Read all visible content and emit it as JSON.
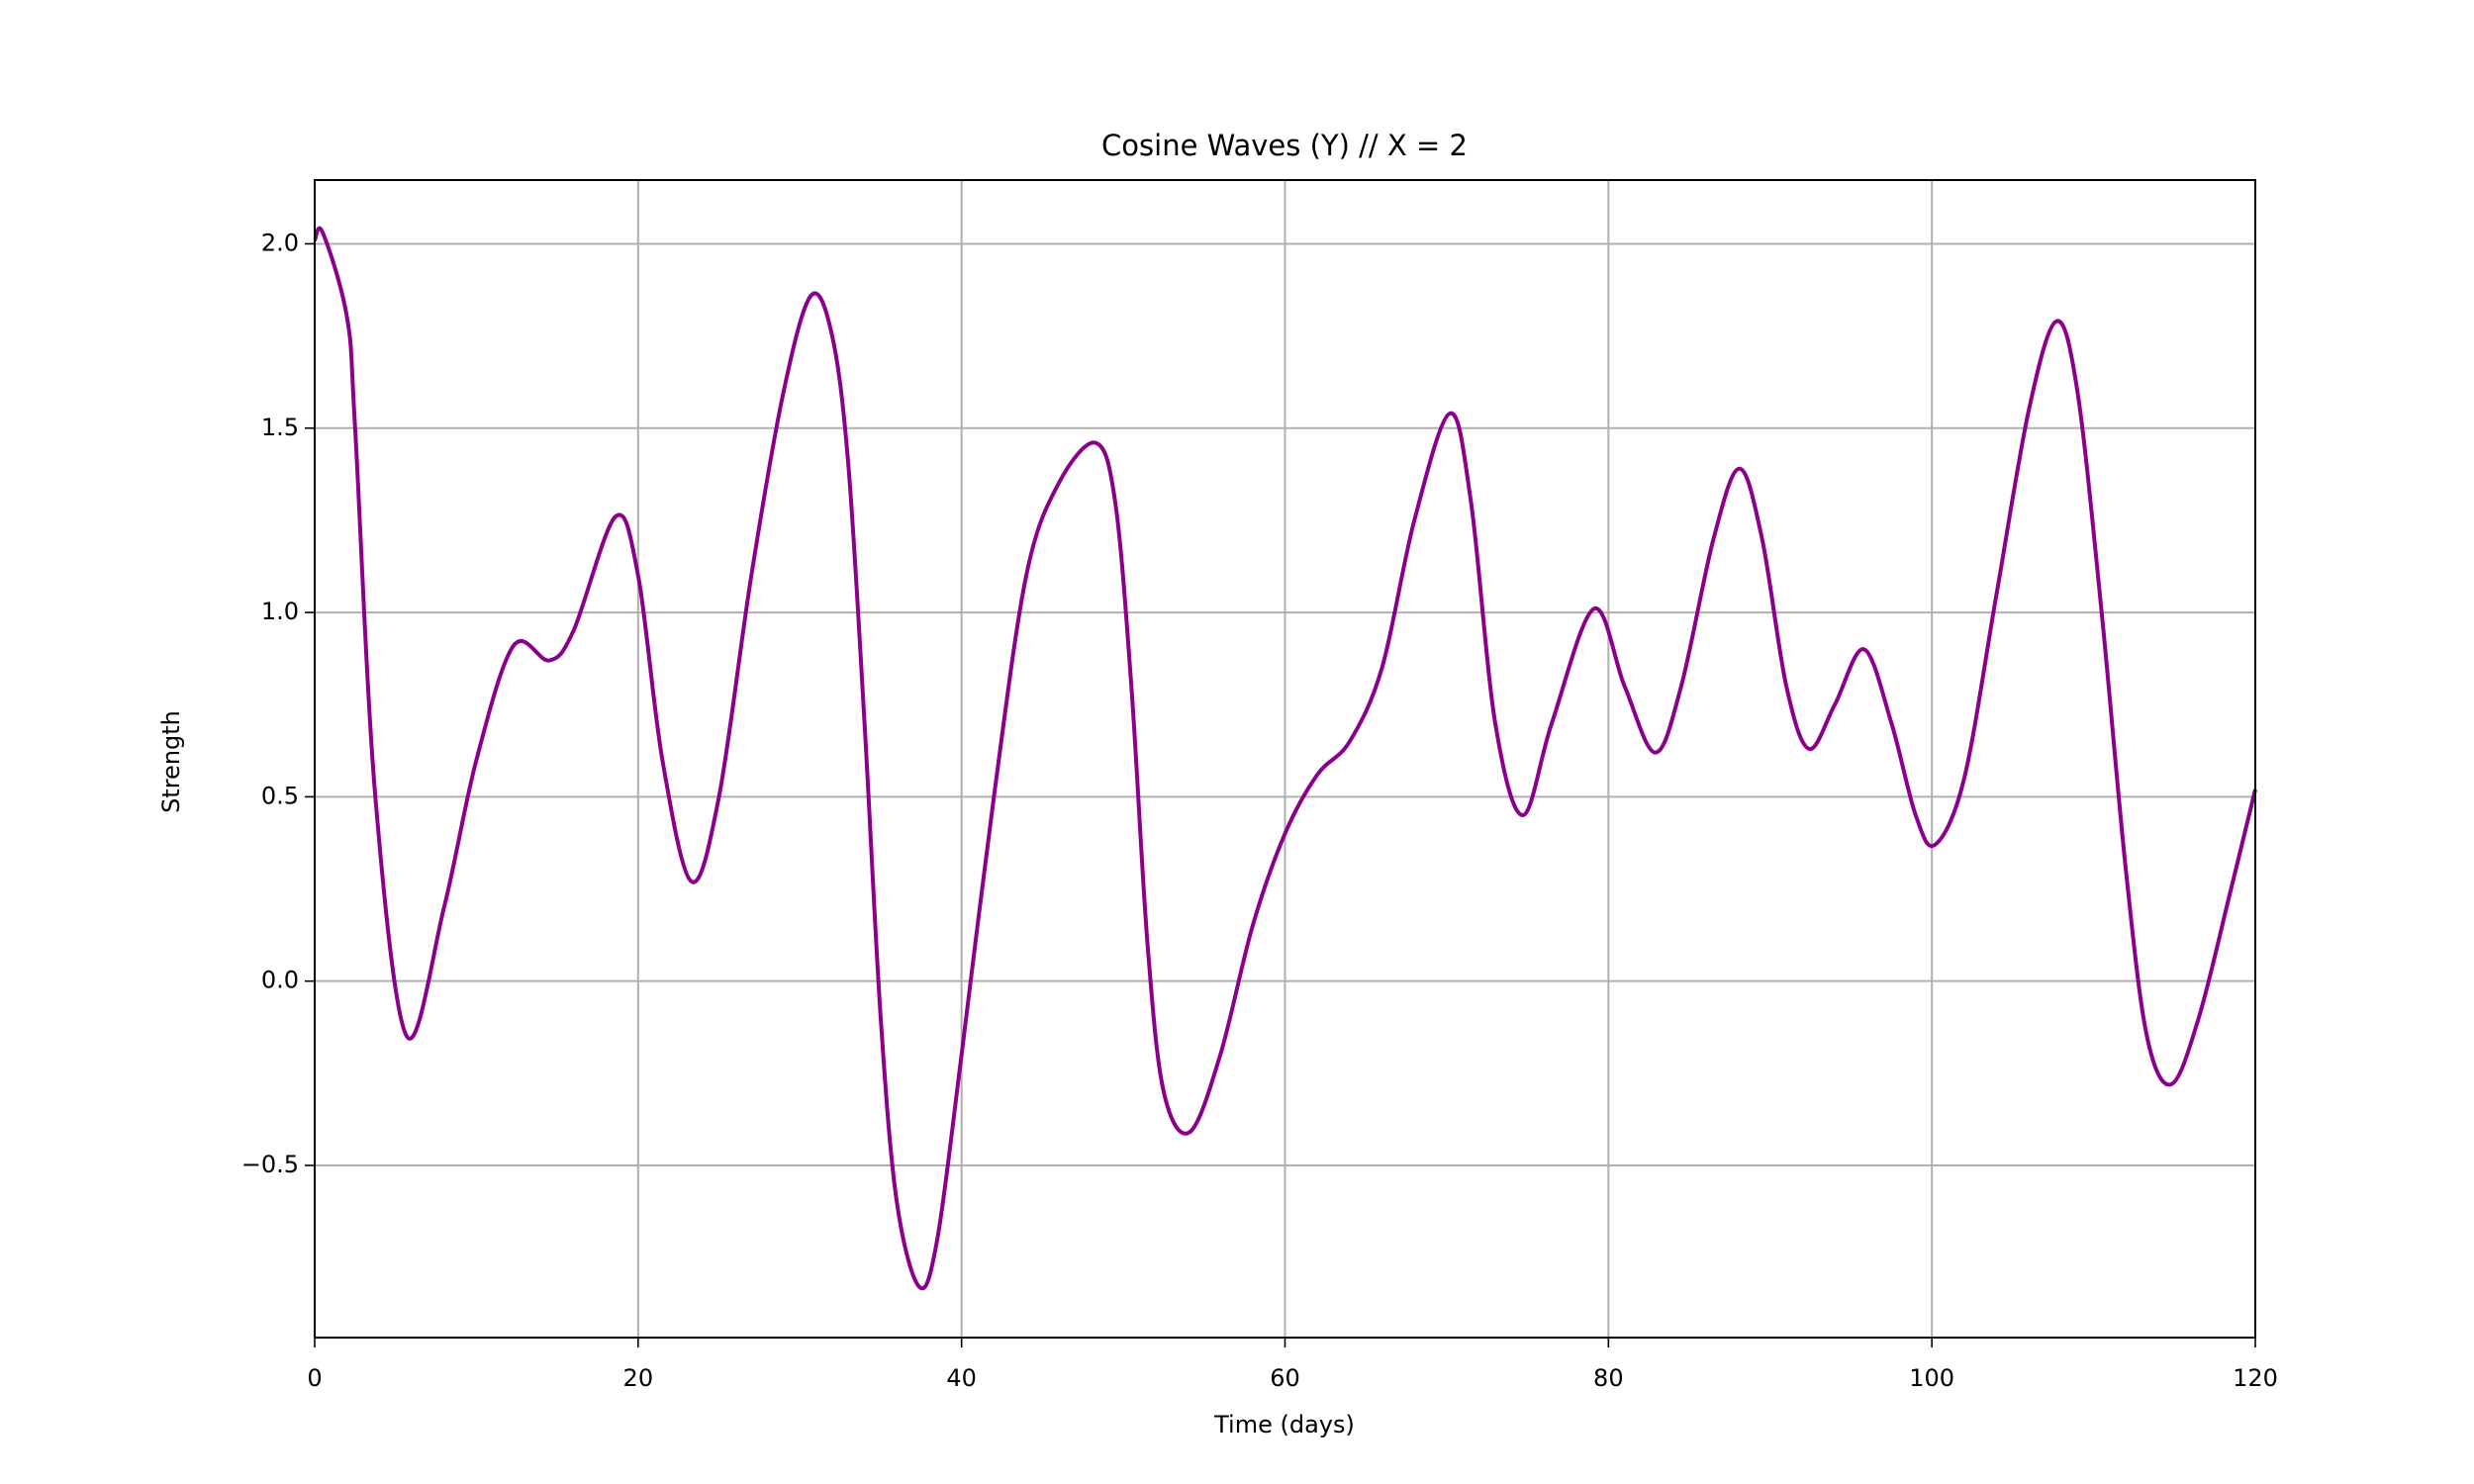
{
  "chart_data": {
    "type": "line",
    "title": "Cosine Waves (Y) // X = 2",
    "x_label": "Time (days)",
    "y_label": "Strength",
    "x": [
      0,
      0.5,
      2,
      2.5,
      3.75,
      5.7,
      8,
      10,
      12.3,
      14.5,
      16,
      18.6,
      20,
      21.5,
      23.3,
      25,
      27,
      29,
      30.7,
      32,
      33,
      34,
      35,
      36,
      37.4,
      38.5,
      40,
      42,
      44,
      46,
      48.3,
      49.5,
      50.5,
      51.5,
      52.5,
      54.1,
      56,
      58,
      60,
      62,
      64,
      66,
      68,
      70.2,
      71.5,
      73,
      74.7,
      76.5,
      79.1,
      81,
      82.9,
      84.5,
      86.5,
      88.1,
      89.5,
      91,
      92.4,
      94,
      95.8,
      97.5,
      99,
      100.2,
      102,
      104,
      106,
      107.7,
      109,
      110.5,
      112,
      113.3,
      114.8,
      116.5,
      118.5,
      120
    ],
    "series": [
      {
        "name": "Strength",
        "color": "#8b008b",
        "values": [
          2.01,
          2.03,
          1.8,
          1.5,
          0.5,
          -0.15,
          0.2,
          0.6,
          0.91,
          0.87,
          0.95,
          1.26,
          1.1,
          0.6,
          0.27,
          0.5,
          1.1,
          1.6,
          1.86,
          1.75,
          1.4,
          0.7,
          -0.1,
          -0.6,
          -0.83,
          -0.7,
          -0.2,
          0.5,
          1.1,
          1.35,
          1.46,
          1.3,
          0.8,
          0.1,
          -0.3,
          -0.41,
          -0.2,
          0.15,
          0.4,
          0.56,
          0.65,
          0.85,
          1.25,
          1.54,
          1.3,
          0.7,
          0.45,
          0.7,
          1.01,
          0.8,
          0.62,
          0.8,
          1.2,
          1.39,
          1.2,
          0.8,
          0.63,
          0.75,
          0.9,
          0.7,
          0.45,
          0.37,
          0.55,
          1.05,
          1.55,
          1.79,
          1.6,
          1.0,
          0.3,
          -0.15,
          -0.28,
          -0.1,
          0.25,
          0.52
        ]
      }
    ],
    "xlim": [
      0,
      120
    ],
    "xticks": [
      0,
      20,
      40,
      60,
      80,
      100,
      120
    ],
    "ylim": [
      -0.967,
      2.173
    ],
    "yticks": [
      {
        "value": -0.5,
        "label": "−0.5"
      },
      {
        "value": 0,
        "label": "0.0"
      },
      0.5,
      {
        "value": 1,
        "label": "1.0"
      },
      1.5,
      {
        "value": 2,
        "label": "2.0"
      }
    ],
    "grid": true
  }
}
